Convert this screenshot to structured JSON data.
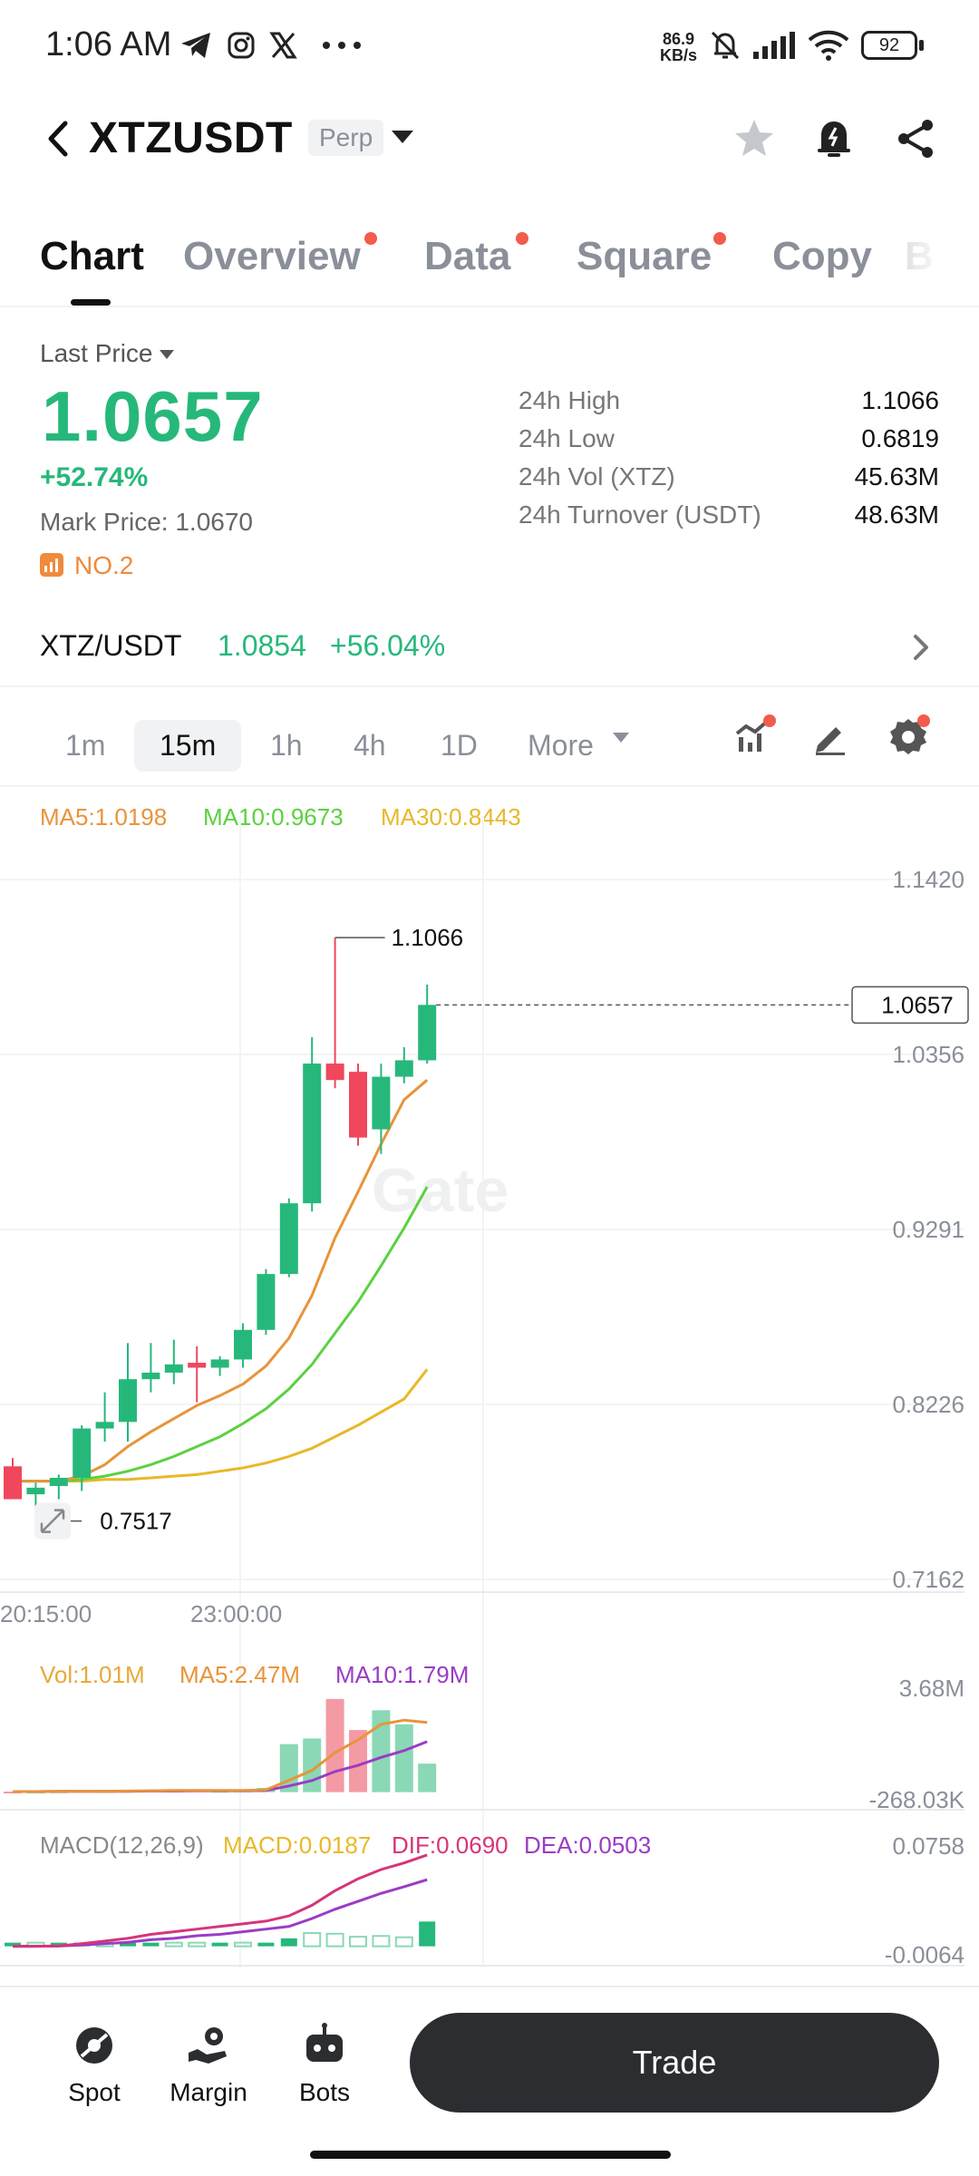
{
  "status_bar": {
    "time": "1:06 AM",
    "icons": [
      "telegram-icon",
      "instagram-icon",
      "x-icon",
      "more-icon"
    ],
    "net_speed_value": "86.9",
    "net_speed_unit": "KB/s",
    "battery": "92"
  },
  "header": {
    "symbol": "XTZUSDT",
    "badge": "Perp",
    "icons": [
      "star-icon",
      "alert-icon",
      "share-icon"
    ]
  },
  "tabs": [
    {
      "label": "Chart",
      "active": true,
      "dot": false
    },
    {
      "label": "Overview",
      "active": false,
      "dot": true
    },
    {
      "label": "Data",
      "active": false,
      "dot": true
    },
    {
      "label": "Square",
      "active": false,
      "dot": true
    },
    {
      "label": "Copy",
      "active": false,
      "dot": false
    },
    {
      "label": "B",
      "active": false,
      "dot": false
    }
  ],
  "price": {
    "last_price_label": "Last Price",
    "last_price": "1.0657",
    "change": "+52.74%",
    "mark_price": "Mark Price:  1.0670",
    "rank": "NO.2",
    "stats": [
      {
        "label": "24h High",
        "value": "1.1066"
      },
      {
        "label": "24h Low",
        "value": "0.6819"
      },
      {
        "label": "24h Vol (XTZ)",
        "value": "45.63M"
      },
      {
        "label": "24h Turnover (USDT)",
        "value": "48.63M"
      }
    ]
  },
  "spot": {
    "pair": "XTZ/USDT",
    "price": "1.0854",
    "change": "+56.04%"
  },
  "intervals": [
    {
      "label": "1m",
      "active": false
    },
    {
      "label": "15m",
      "active": true
    },
    {
      "label": "1h",
      "active": false
    },
    {
      "label": "4h",
      "active": false
    },
    {
      "label": "1D",
      "active": false
    },
    {
      "label": "More",
      "active": false
    }
  ],
  "ma_legend": {
    "ma5": "MA5:1.0198",
    "ma10": "MA10:0.9673",
    "ma30": "MA30:0.8443"
  },
  "vol_legend": {
    "vol": "Vol:1.01M",
    "ma5": "MA5:2.47M",
    "ma10": "MA10:1.79M"
  },
  "macd_legend": {
    "name": "MACD(12,26,9)",
    "macd": "MACD:0.0187",
    "dif": "DIF:0.0690",
    "dea": "DEA:0.0503"
  },
  "colors": {
    "up": "#26b87a",
    "down": "#f0475d",
    "ma5": "#e8943a",
    "ma10": "#5bd13f",
    "ma30": "#e8b828",
    "dif": "#d6357a",
    "dea": "#9b3cc4"
  },
  "chart_data": {
    "type": "candlestick",
    "watermark": "Gate",
    "price_axis": [
      "1.1420",
      "1.0356",
      "0.9291",
      "0.8226",
      "0.7162"
    ],
    "price_range": [
      0.7162,
      1.142
    ],
    "time_axis": [
      "20:15:00",
      "23:00:00"
    ],
    "high_label": "1.1066",
    "low_label": "0.7517",
    "current_price": "1.0657",
    "candles": [
      {
        "o": 0.785,
        "h": 0.79,
        "l": 0.765,
        "c": 0.765
      },
      {
        "o": 0.768,
        "h": 0.775,
        "l": 0.76,
        "c": 0.772
      },
      {
        "o": 0.773,
        "h": 0.78,
        "l": 0.765,
        "c": 0.778
      },
      {
        "o": 0.778,
        "h": 0.81,
        "l": 0.77,
        "c": 0.808
      },
      {
        "o": 0.808,
        "h": 0.83,
        "l": 0.8,
        "c": 0.812
      },
      {
        "o": 0.812,
        "h": 0.86,
        "l": 0.8,
        "c": 0.838
      },
      {
        "o": 0.838,
        "h": 0.86,
        "l": 0.83,
        "c": 0.842
      },
      {
        "o": 0.842,
        "h": 0.862,
        "l": 0.835,
        "c": 0.847
      },
      {
        "o": 0.848,
        "h": 0.858,
        "l": 0.824,
        "c": 0.845
      },
      {
        "o": 0.845,
        "h": 0.852,
        "l": 0.84,
        "c": 0.85
      },
      {
        "o": 0.85,
        "h": 0.872,
        "l": 0.845,
        "c": 0.868
      },
      {
        "o": 0.868,
        "h": 0.905,
        "l": 0.865,
        "c": 0.902
      },
      {
        "o": 0.902,
        "h": 0.948,
        "l": 0.9,
        "c": 0.945
      },
      {
        "o": 0.945,
        "h": 1.046,
        "l": 0.94,
        "c": 1.03
      },
      {
        "o": 1.03,
        "h": 1.1066,
        "l": 1.015,
        "c": 1.02
      },
      {
        "o": 1.025,
        "h": 1.03,
        "l": 0.98,
        "c": 0.985
      },
      {
        "o": 0.99,
        "h": 1.03,
        "l": 0.975,
        "c": 1.022
      },
      {
        "o": 1.022,
        "h": 1.04,
        "l": 1.018,
        "c": 1.032
      },
      {
        "o": 1.032,
        "h": 1.078,
        "l": 1.03,
        "c": 1.0657
      }
    ],
    "ma5": [
      0.776,
      0.776,
      0.776,
      0.779,
      0.786,
      0.797,
      0.806,
      0.814,
      0.822,
      0.828,
      0.835,
      0.846,
      0.863,
      0.889,
      0.924,
      0.952,
      0.981,
      1.008,
      1.02
    ],
    "ma10": [
      0.776,
      0.776,
      0.776,
      0.777,
      0.779,
      0.782,
      0.786,
      0.791,
      0.797,
      0.803,
      0.811,
      0.82,
      0.832,
      0.847,
      0.866,
      0.885,
      0.907,
      0.93,
      0.955
    ],
    "ma30": [
      0.776,
      0.776,
      0.776,
      0.776,
      0.777,
      0.777,
      0.778,
      0.779,
      0.78,
      0.782,
      0.784,
      0.787,
      0.791,
      0.796,
      0.803,
      0.81,
      0.818,
      0.826,
      0.844
    ],
    "volume": {
      "axis": [
        "3.68M",
        "-268.03K"
      ],
      "range": [
        -0.26803,
        3.68
      ],
      "bars": [
        0.02,
        0.02,
        0.03,
        0.05,
        0.04,
        0.06,
        0.08,
        0.06,
        0.07,
        0.05,
        0.06,
        0.15,
        1.7,
        1.9,
        3.3,
        2.2,
        2.9,
        2.4,
        1.01
      ],
      "ma5": [
        0.02,
        0.02,
        0.03,
        0.03,
        0.03,
        0.04,
        0.05,
        0.06,
        0.06,
        0.06,
        0.06,
        0.08,
        0.42,
        0.77,
        1.4,
        1.85,
        2.4,
        2.55,
        2.47
      ],
      "ma10": [
        0.02,
        0.02,
        0.03,
        0.03,
        0.03,
        0.03,
        0.04,
        0.04,
        0.05,
        0.05,
        0.05,
        0.06,
        0.22,
        0.41,
        0.73,
        0.95,
        1.23,
        1.47,
        1.79
      ]
    },
    "macd": {
      "axis": [
        "0.0758",
        "-0.0064"
      ],
      "range": [
        -0.0064,
        0.0758
      ],
      "hist": [
        0.0,
        0.0,
        0.0005,
        0.001,
        0.0012,
        0.0014,
        0.0016,
        0.0014,
        0.0012,
        0.0012,
        0.0013,
        0.0022,
        0.006,
        0.01,
        0.0095,
        0.0072,
        0.0078,
        0.0068,
        0.0187
      ],
      "dif": [
        0.0,
        0.0,
        0.0003,
        0.002,
        0.004,
        0.006,
        0.009,
        0.011,
        0.013,
        0.015,
        0.017,
        0.019,
        0.023,
        0.031,
        0.042,
        0.051,
        0.058,
        0.063,
        0.069
      ],
      "dea": [
        0.0,
        0.0,
        0.0002,
        0.001,
        0.002,
        0.003,
        0.005,
        0.006,
        0.008,
        0.009,
        0.011,
        0.013,
        0.015,
        0.021,
        0.028,
        0.034,
        0.04,
        0.045,
        0.0503
      ]
    }
  },
  "bottom_nav": [
    {
      "label": "Spot",
      "icon": "spot-icon"
    },
    {
      "label": "Margin",
      "icon": "margin-icon"
    },
    {
      "label": "Bots",
      "icon": "bots-icon"
    }
  ],
  "trade_label": "Trade"
}
